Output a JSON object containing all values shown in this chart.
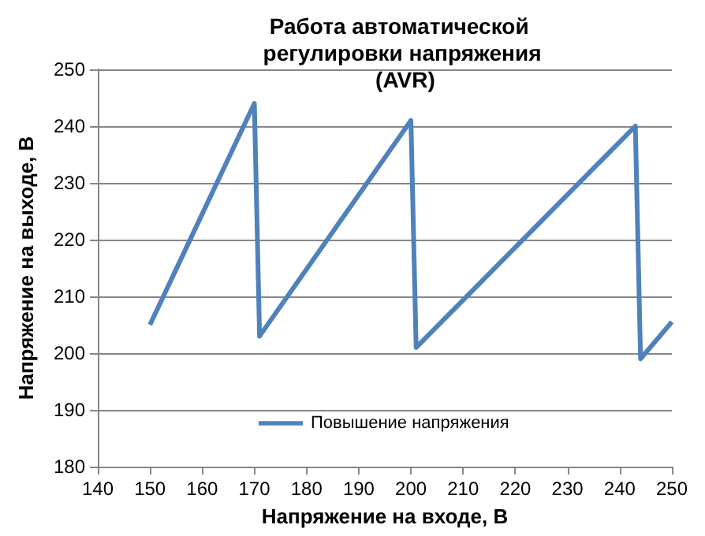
{
  "chart_data": {
    "type": "line",
    "title": "Работа автоматической регулировки напряжения (AVR)",
    "xlabel": "Напряжение на входе, В",
    "ylabel": "Напряжение на выходе, В",
    "series": [
      {
        "name": "Повышение напряжения",
        "color": "#4f81bd",
        "x": [
          150,
          170,
          171,
          200,
          201,
          243,
          244,
          250
        ],
        "values": [
          205,
          244,
          203,
          241,
          201,
          240,
          199,
          205.5
        ]
      }
    ],
    "xlim": [
      140,
      250
    ],
    "xticks": [
      140,
      150,
      160,
      170,
      180,
      190,
      200,
      210,
      220,
      230,
      240,
      250
    ],
    "ylim": [
      180,
      250
    ],
    "yticks": [
      180,
      190,
      200,
      210,
      220,
      230,
      240,
      250
    ],
    "grid": "y",
    "legend": "bottom",
    "marker": "none",
    "line_style": "solid"
  }
}
